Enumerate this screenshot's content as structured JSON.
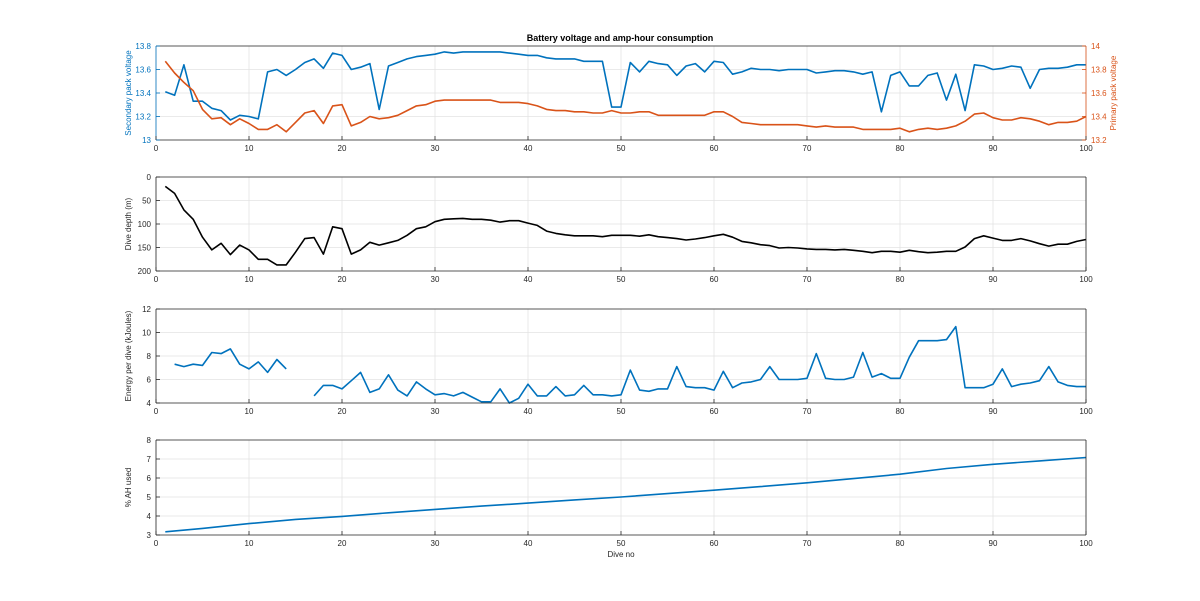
{
  "figure": {
    "title": "Battery voltage and amp-hour consumption",
    "colors": {
      "blue": "#0072bd",
      "orange": "#d95319",
      "black": "#000000",
      "grid": "#e3e3e3",
      "axis": "#262626"
    }
  },
  "chart_data": [
    {
      "type": "line",
      "title": "Battery voltage and amp-hour consumption",
      "xlabel": "",
      "xlim": [
        0,
        100
      ],
      "xticks": [
        0,
        10,
        20,
        30,
        40,
        50,
        60,
        70,
        80,
        90,
        100
      ],
      "grid": true,
      "ylabel_left": "Secondary pack voltage",
      "ylim_left": [
        13,
        13.8
      ],
      "yticks_left": [
        13,
        13.2,
        13.4,
        13.6,
        13.8
      ],
      "ylabel_right": "Primary pack voltage",
      "ylim_right": [
        13.2,
        14
      ],
      "yticks_right": [
        13.2,
        13.4,
        13.6,
        13.8,
        14
      ],
      "series": [
        {
          "axis": "left",
          "color": "#0072bd",
          "x": [
            1,
            2,
            3,
            4,
            5,
            6,
            7,
            8,
            9,
            10,
            11,
            12,
            13,
            14,
            15,
            16,
            17,
            18,
            19,
            20,
            21,
            22,
            23,
            24,
            25,
            26,
            27,
            28,
            29,
            30,
            31,
            32,
            33,
            34,
            35,
            36,
            37,
            38,
            39,
            40,
            41,
            42,
            43,
            44,
            45,
            46,
            47,
            48,
            49,
            50,
            51,
            52,
            53,
            54,
            55,
            56,
            57,
            58,
            59,
            60,
            61,
            62,
            63,
            64,
            65,
            66,
            67,
            68,
            69,
            70,
            71,
            72,
            73,
            74,
            75,
            76,
            77,
            78,
            79,
            80,
            81,
            82,
            83,
            84,
            85,
            86,
            87,
            88,
            89,
            90,
            91,
            92,
            93,
            94,
            95,
            96,
            97,
            98,
            99,
            100
          ],
          "values": [
            13.41,
            13.38,
            13.64,
            13.33,
            13.33,
            13.27,
            13.25,
            13.17,
            13.21,
            13.2,
            13.18,
            13.58,
            13.6,
            13.55,
            13.6,
            13.66,
            13.69,
            13.61,
            13.74,
            13.72,
            13.6,
            13.62,
            13.65,
            13.26,
            13.63,
            13.66,
            13.69,
            13.71,
            13.72,
            13.73,
            13.75,
            13.74,
            13.75,
            13.75,
            13.75,
            13.75,
            13.75,
            13.74,
            13.73,
            13.72,
            13.72,
            13.7,
            13.69,
            13.69,
            13.69,
            13.67,
            13.67,
            13.67,
            13.28,
            13.28,
            13.66,
            13.58,
            13.67,
            13.65,
            13.64,
            13.55,
            13.63,
            13.65,
            13.58,
            13.67,
            13.66,
            13.56,
            13.58,
            13.61,
            13.6,
            13.6,
            13.59,
            13.6,
            13.6,
            13.6,
            13.57,
            13.58,
            13.59,
            13.59,
            13.58,
            13.56,
            13.58,
            13.24,
            13.55,
            13.58,
            13.46,
            13.46,
            13.55,
            13.57,
            13.34,
            13.56,
            13.25,
            13.64,
            13.63,
            13.6,
            13.61,
            13.63,
            13.62,
            13.44,
            13.6,
            13.61,
            13.61,
            13.62,
            13.64,
            13.64
          ]
        },
        {
          "axis": "right",
          "color": "#d95319",
          "x": [
            1,
            2,
            3,
            4,
            5,
            6,
            7,
            8,
            9,
            10,
            11,
            12,
            13,
            14,
            15,
            16,
            17,
            18,
            19,
            20,
            21,
            22,
            23,
            24,
            25,
            26,
            27,
            28,
            29,
            30,
            31,
            32,
            33,
            34,
            35,
            36,
            37,
            38,
            39,
            40,
            41,
            42,
            43,
            44,
            45,
            46,
            47,
            48,
            49,
            50,
            51,
            52,
            53,
            54,
            55,
            56,
            57,
            58,
            59,
            60,
            61,
            62,
            63,
            64,
            65,
            66,
            67,
            68,
            69,
            70,
            71,
            72,
            73,
            74,
            75,
            76,
            77,
            78,
            79,
            80,
            81,
            82,
            83,
            84,
            85,
            86,
            87,
            88,
            89,
            90,
            91,
            92,
            93,
            94,
            95,
            96,
            97,
            98,
            99,
            100
          ],
          "values": [
            13.87,
            13.77,
            13.69,
            13.62,
            13.46,
            13.38,
            13.39,
            13.33,
            13.38,
            13.34,
            13.29,
            13.29,
            13.33,
            13.27,
            13.35,
            13.43,
            13.45,
            13.34,
            13.49,
            13.5,
            13.32,
            13.35,
            13.4,
            13.38,
            13.39,
            13.41,
            13.45,
            13.49,
            13.5,
            13.53,
            13.54,
            13.54,
            13.54,
            13.54,
            13.54,
            13.54,
            13.52,
            13.52,
            13.52,
            13.51,
            13.49,
            13.46,
            13.45,
            13.45,
            13.44,
            13.44,
            13.43,
            13.43,
            13.45,
            13.43,
            13.43,
            13.44,
            13.44,
            13.41,
            13.41,
            13.41,
            13.41,
            13.41,
            13.41,
            13.44,
            13.44,
            13.4,
            13.35,
            13.34,
            13.33,
            13.33,
            13.33,
            13.33,
            13.33,
            13.32,
            13.31,
            13.32,
            13.31,
            13.31,
            13.31,
            13.29,
            13.29,
            13.29,
            13.29,
            13.3,
            13.27,
            13.29,
            13.3,
            13.29,
            13.3,
            13.32,
            13.36,
            13.42,
            13.43,
            13.39,
            13.37,
            13.37,
            13.39,
            13.38,
            13.36,
            13.33,
            13.35,
            13.35,
            13.36,
            13.4
          ]
        }
      ]
    },
    {
      "type": "line",
      "xlabel": "",
      "ylabel": "Dive depth (m)",
      "xlim": [
        0,
        100
      ],
      "xticks": [
        0,
        10,
        20,
        30,
        40,
        50,
        60,
        70,
        80,
        90,
        100
      ],
      "ylim": [
        0,
        200
      ],
      "yticks": [
        0,
        50,
        100,
        150,
        200
      ],
      "y_reversed": true,
      "grid": true,
      "series": [
        {
          "color": "#000000",
          "x": [
            1,
            2,
            3,
            4,
            5,
            6,
            7,
            8,
            9,
            10,
            11,
            12,
            13,
            14,
            15,
            16,
            17,
            18,
            19,
            20,
            21,
            22,
            23,
            24,
            25,
            26,
            27,
            28,
            29,
            30,
            31,
            32,
            33,
            34,
            35,
            36,
            37,
            38,
            39,
            40,
            41,
            42,
            43,
            44,
            45,
            46,
            47,
            48,
            49,
            50,
            51,
            52,
            53,
            54,
            55,
            56,
            57,
            58,
            59,
            60,
            61,
            62,
            63,
            64,
            65,
            66,
            67,
            68,
            69,
            70,
            71,
            72,
            73,
            74,
            75,
            76,
            77,
            78,
            79,
            80,
            81,
            82,
            83,
            84,
            85,
            86,
            87,
            88,
            89,
            90,
            91,
            92,
            93,
            94,
            95,
            96,
            97,
            98,
            99,
            100
          ],
          "values": [
            20,
            35,
            70,
            90,
            128,
            155,
            141,
            165,
            145,
            155,
            175,
            175,
            187,
            187,
            160,
            131,
            129,
            164,
            106,
            110,
            164,
            155,
            139,
            145,
            140,
            135,
            124,
            110,
            106,
            95,
            90,
            89,
            88,
            90,
            90,
            92,
            96,
            93,
            93,
            98,
            103,
            115,
            120,
            123,
            125,
            125,
            125,
            127,
            124,
            124,
            124,
            126,
            123,
            127,
            129,
            131,
            134,
            132,
            129,
            125,
            122,
            128,
            137,
            140,
            144,
            146,
            151,
            150,
            151,
            153,
            154,
            154,
            155,
            154,
            156,
            158,
            161,
            158,
            158,
            160,
            156,
            159,
            161,
            160,
            158,
            158,
            149,
            131,
            125,
            130,
            135,
            135,
            131,
            136,
            142,
            147,
            143,
            143,
            137,
            133
          ]
        }
      ]
    },
    {
      "type": "line",
      "xlabel": "",
      "ylabel": "Energy per dive (kJoules)",
      "xlim": [
        0,
        100
      ],
      "xticks": [
        0,
        10,
        20,
        30,
        40,
        50,
        60,
        70,
        80,
        90,
        100
      ],
      "ylim": [
        4,
        12
      ],
      "yticks": [
        4,
        6,
        8,
        10,
        12
      ],
      "grid": true,
      "series": [
        {
          "color": "#0072bd",
          "x": [
            2,
            3,
            4,
            5,
            6,
            7,
            8,
            9,
            10,
            11,
            12,
            13,
            14,
            15,
            16,
            17,
            18,
            19,
            20,
            21,
            22,
            23,
            24,
            25,
            26,
            27,
            28,
            29,
            30,
            31,
            32,
            33,
            34,
            35,
            36,
            37,
            38,
            39,
            40,
            41,
            42,
            43,
            44,
            45,
            46,
            47,
            48,
            49,
            50,
            51,
            52,
            53,
            54,
            55,
            56,
            57,
            58,
            59,
            60,
            61,
            62,
            63,
            64,
            65,
            66,
            67,
            68,
            69,
            70,
            71,
            72,
            73,
            74,
            75,
            76,
            77,
            78,
            79,
            80,
            81,
            82,
            83,
            84,
            85,
            86,
            87,
            88,
            89,
            90,
            91,
            92,
            93,
            94,
            95,
            96,
            97,
            98,
            99,
            100
          ],
          "values": [
            7.3,
            7.1,
            7.3,
            7.2,
            8.3,
            8.2,
            8.6,
            7.3,
            6.9,
            7.5,
            6.6,
            7.7,
            6.9,
            null,
            null,
            4.6,
            5.5,
            5.5,
            5.2,
            5.9,
            6.6,
            4.9,
            5.2,
            6.4,
            5.1,
            4.6,
            5.8,
            5.2,
            4.7,
            4.8,
            4.6,
            4.9,
            4.5,
            4.1,
            4.1,
            5.2,
            4.0,
            4.4,
            5.6,
            4.6,
            4.6,
            5.4,
            4.6,
            4.7,
            5.5,
            4.7,
            4.7,
            4.6,
            4.7,
            6.8,
            5.1,
            5.0,
            5.2,
            5.2,
            7.1,
            5.4,
            5.3,
            5.3,
            5.1,
            6.7,
            5.3,
            5.7,
            5.8,
            6.0,
            7.1,
            6.0,
            6.0,
            6.0,
            6.1,
            8.2,
            6.1,
            6.0,
            6.0,
            6.2,
            8.3,
            6.2,
            6.5,
            6.1,
            6.1,
            7.9,
            9.3,
            9.3,
            9.3,
            9.4,
            10.5,
            5.3,
            5.3,
            5.3,
            5.6,
            6.9,
            5.4,
            5.6,
            5.7,
            5.9,
            7.1,
            5.8,
            5.5,
            5.4,
            5.4
          ]
        }
      ]
    },
    {
      "type": "line",
      "xlabel": "Dive no",
      "ylabel": "% AH used",
      "xlim": [
        0,
        100
      ],
      "xticks": [
        0,
        10,
        20,
        30,
        40,
        50,
        60,
        70,
        80,
        90,
        100
      ],
      "ylim": [
        3,
        8
      ],
      "yticks": [
        3,
        4,
        5,
        6,
        7,
        8
      ],
      "grid": true,
      "series": [
        {
          "color": "#0072bd",
          "x": [
            1,
            5,
            10,
            15,
            20,
            25,
            30,
            35,
            40,
            45,
            50,
            55,
            60,
            65,
            70,
            75,
            80,
            85,
            90,
            95,
            100
          ],
          "values": [
            3.17,
            3.35,
            3.6,
            3.82,
            3.98,
            4.17,
            4.35,
            4.52,
            4.68,
            4.85,
            5.0,
            5.18,
            5.36,
            5.55,
            5.75,
            5.97,
            6.2,
            6.5,
            6.72,
            6.9,
            7.08
          ]
        }
      ]
    }
  ]
}
